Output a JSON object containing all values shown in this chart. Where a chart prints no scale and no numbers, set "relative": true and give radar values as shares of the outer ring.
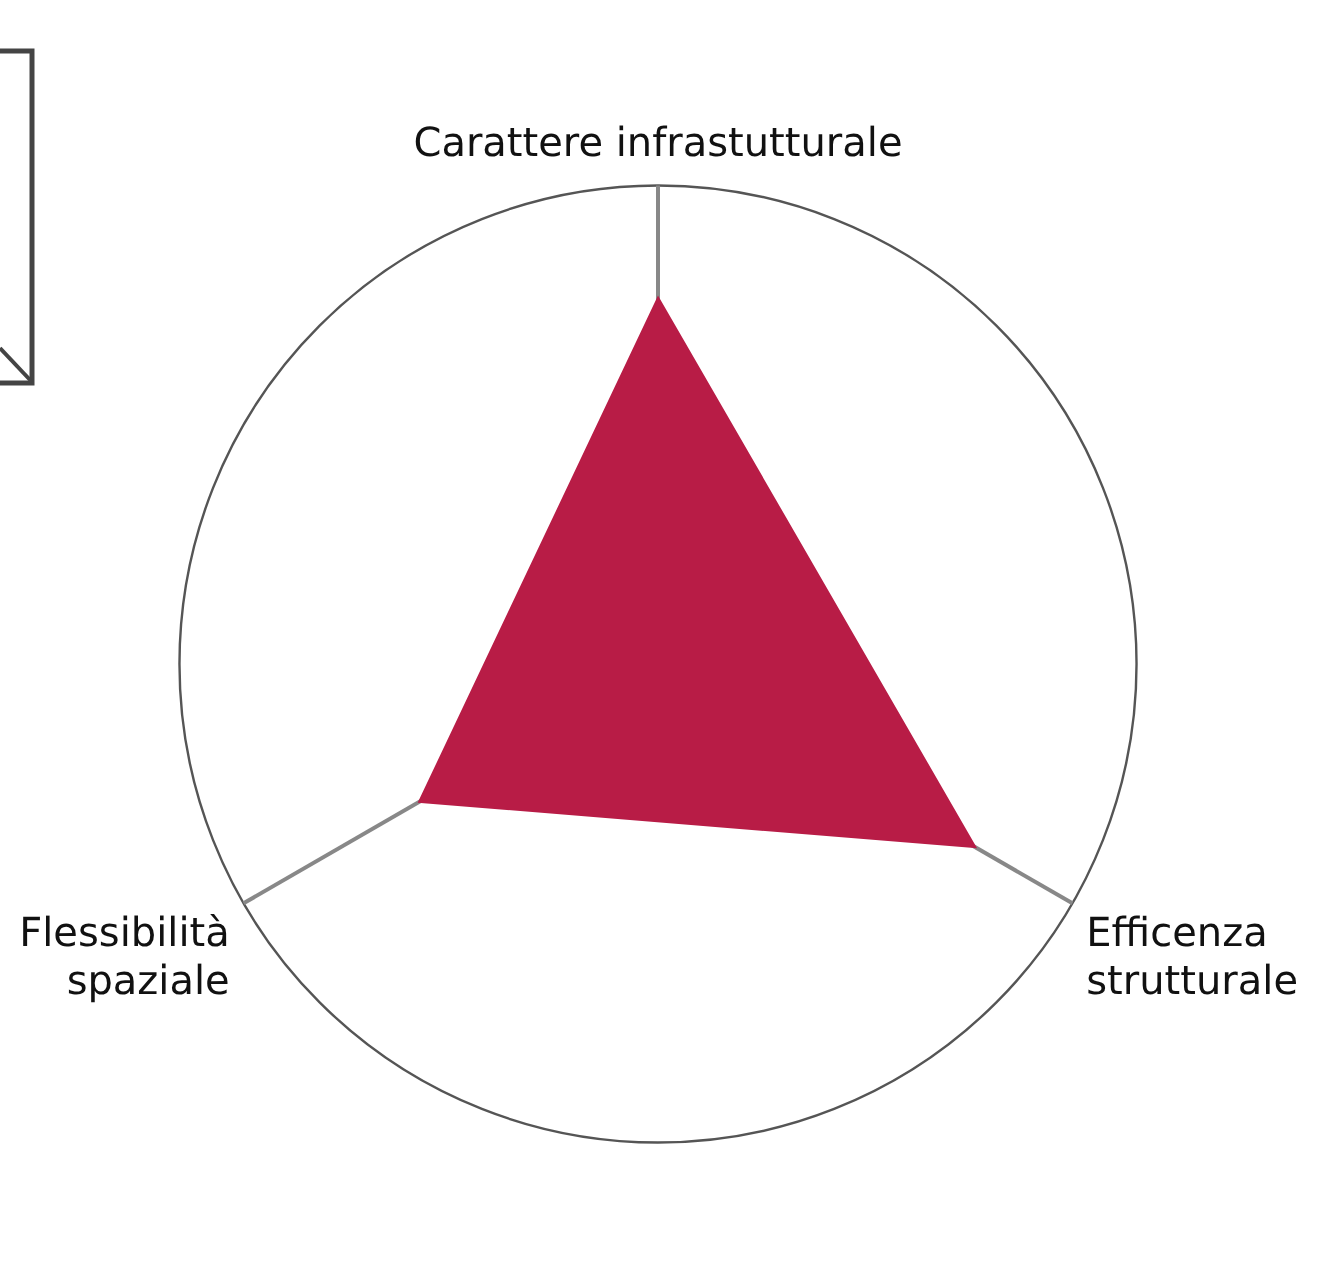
{
  "chart_data": {
    "type": "radar",
    "relative": true,
    "categories": [
      "Carattere infrastutturale",
      "Efficenza strutturale",
      "Flessibilità spaziale"
    ],
    "series": [
      {
        "color": "#b81c46",
        "values": [
          0.77,
          0.77,
          0.58
        ]
      }
    ],
    "legend": false
  }
}
